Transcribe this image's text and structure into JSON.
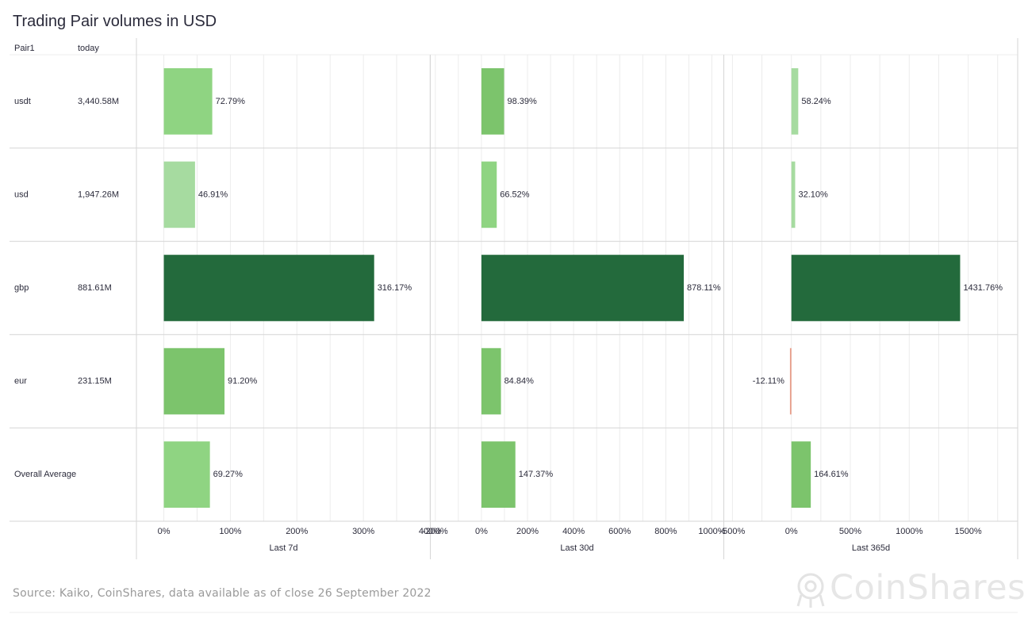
{
  "title": "Trading Pair volumes in USD",
  "source": "Source: Kaiko, CoinShares, data available as of close 26 September 2022",
  "logo_text": "CoinShares",
  "chart_data": {
    "type": "bar",
    "orientation": "horizontal",
    "title": "Trading Pair volumes in USD",
    "columns": {
      "pair": "Pair1",
      "today": "today"
    },
    "rows": [
      {
        "pair": "usdt",
        "today": "3,440.58M"
      },
      {
        "pair": "usd",
        "today": "1,947.26M"
      },
      {
        "pair": "gbp",
        "today": "881.61M"
      },
      {
        "pair": "eur",
        "today": "231.15M"
      },
      {
        "pair": "Overall Average",
        "today": ""
      }
    ],
    "panels": [
      {
        "xlabel": "Last 7d",
        "xlim": [
          -40,
          400
        ],
        "ticks": [
          0,
          100,
          200,
          300,
          400
        ],
        "tick_labels": [
          "0%",
          "100%",
          "200%",
          "300%",
          "400%"
        ],
        "values": [
          72.79,
          46.91,
          316.17,
          91.2,
          69.27
        ],
        "labels": [
          "72.79%",
          "46.91%",
          "316.17%",
          "91.20%",
          "69.27%"
        ]
      },
      {
        "xlabel": "Last 30d",
        "xlim": [
          -220,
          1050
        ],
        "ticks": [
          -200,
          0,
          200,
          400,
          600,
          800,
          1000
        ],
        "tick_labels": [
          "-200%",
          "0%",
          "200%",
          "400%",
          "600%",
          "800%",
          "1000%"
        ],
        "values": [
          98.39,
          66.52,
          878.11,
          84.84,
          147.37
        ],
        "labels": [
          "98.39%",
          "66.52%",
          "878.11%",
          "84.84%",
          "147.37%"
        ]
      },
      {
        "xlabel": "Last 365d",
        "xlim": [
          -570,
          1920
        ],
        "ticks": [
          -500,
          0,
          500,
          1000,
          1500
        ],
        "tick_labels": [
          "-500%",
          "0%",
          "500%",
          "1000%",
          "1500%"
        ],
        "values": [
          58.24,
          32.1,
          1431.76,
          -12.11,
          164.61
        ],
        "labels": [
          "58.24%",
          "32.10%",
          "1431.76%",
          "-12.11%",
          "164.61%"
        ]
      }
    ],
    "colors": {
      "light_green": "#a6dba0",
      "mid_green": "#8fd482",
      "green": "#7cc46c",
      "dark_green": "#236a3c",
      "negative": "#e89c88",
      "grid": "#ececec",
      "separator": "#d6d6d6"
    }
  }
}
